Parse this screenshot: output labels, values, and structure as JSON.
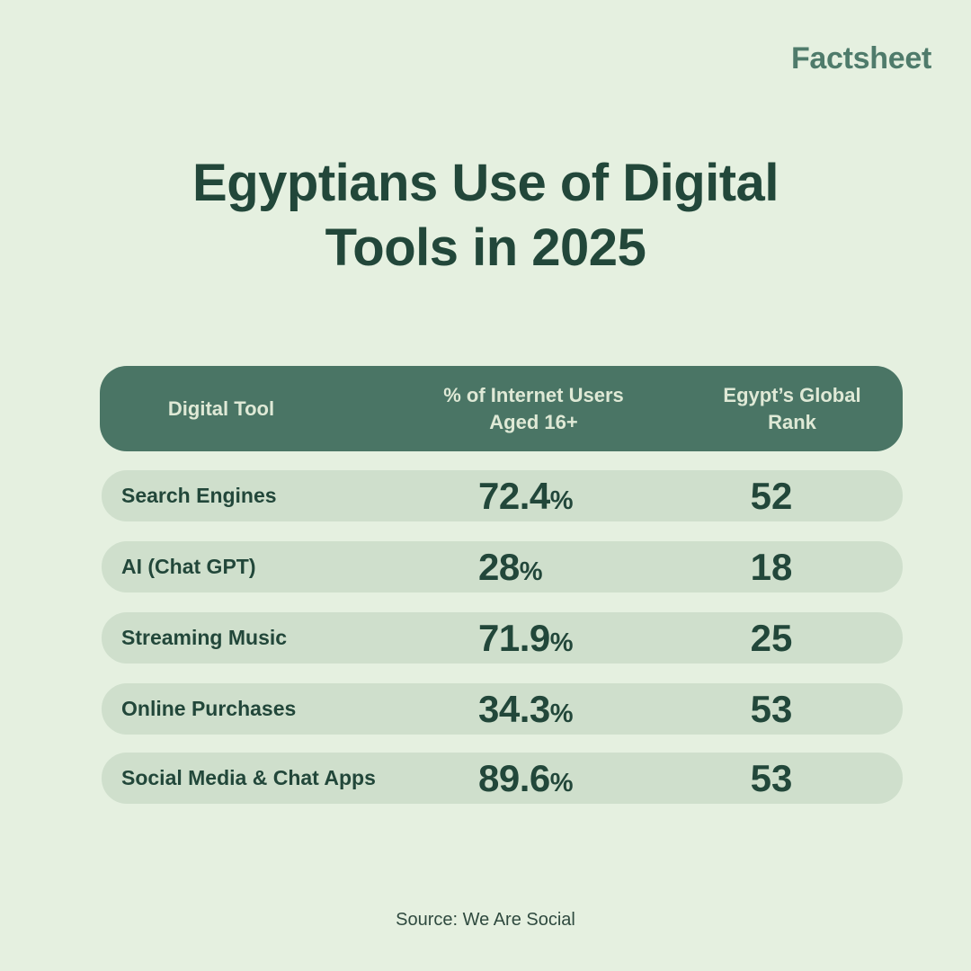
{
  "brand": "Factsheet",
  "title_line1": "Egyptians Use of Digital",
  "title_line2": "Tools in 2025",
  "chart_data": {
    "type": "table",
    "columns": [
      "Digital Tool",
      "% of Internet Users Aged 16+",
      "Egypt’s Global Rank"
    ],
    "header": {
      "col1": "Digital Tool",
      "col2_line1": "% of Internet Users",
      "col2_line2": "Aged 16+",
      "col3_line1": "Egypt’s Global",
      "col3_line2": "Rank"
    },
    "rows": [
      {
        "tool": "Search Engines",
        "percent": "72.4",
        "rank": "52"
      },
      {
        "tool": "AI (Chat GPT)",
        "percent": "28",
        "rank": "18"
      },
      {
        "tool": "Streaming Music",
        "percent": "71.9",
        "rank": "25"
      },
      {
        "tool": "Online Purchases",
        "percent": "34.3",
        "rank": "53"
      },
      {
        "tool": "Social Media & Chat Apps",
        "percent": "89.6",
        "rank": "53"
      }
    ],
    "percent_sign": "%"
  },
  "source": "Source: We Are Social",
  "colors": {
    "background": "#e5f0e0",
    "header_fill": "#4a7565",
    "row_fill": "#cfdfcc",
    "text_dark": "#22473a",
    "brand": "#4f7b6b"
  }
}
